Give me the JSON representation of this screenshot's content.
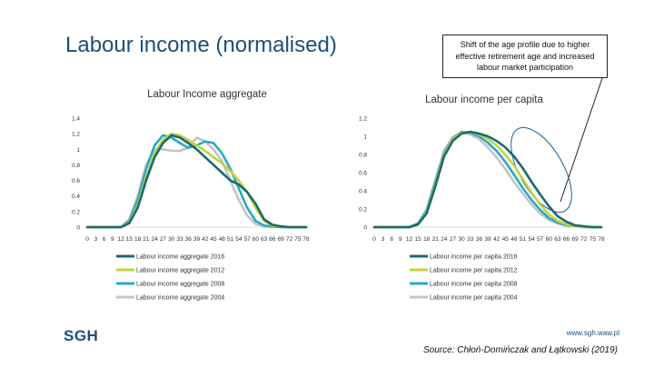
{
  "slide": {
    "title": "Labour income (normalised)",
    "callout": "Shift of the age profile due to higher effective retirement age and increased labour market participation",
    "logo": "SGH",
    "website": "www.sgh.waw.pl",
    "source": "Source: Chłoń-Domińczak and Łątkowski (2019)"
  },
  "colors": {
    "2016": "#1b6a6e",
    "2012": "#c3d33c",
    "2008": "#2aa9c4",
    "2004": "#c4c4c4"
  },
  "chart_data": [
    {
      "type": "line",
      "title": "Labour Income aggregate",
      "x_tick_labels": [
        "0",
        "3",
        "6",
        "9",
        "12",
        "15",
        "18",
        "21",
        "24",
        "27",
        "30",
        "33",
        "36",
        "39",
        "42",
        "45",
        "48",
        "51",
        "54",
        "57",
        "60",
        "63",
        "66",
        "69",
        "72",
        "75",
        "78"
      ],
      "y_tick_labels": [
        "0",
        "0.2",
        "0.4",
        "0.6",
        "0.8",
        "1",
        "1.2",
        "1.4"
      ],
      "ylim": [
        0,
        1.4
      ],
      "xlim": [
        0,
        78
      ],
      "grid": false,
      "legend_position": "bottom",
      "series": [
        {
          "name": "Labour income aggregate 2016",
          "color_key": "2016",
          "x": [
            0,
            12,
            15,
            18,
            21,
            24,
            27,
            30,
            33,
            36,
            39,
            42,
            45,
            48,
            51,
            54,
            57,
            60,
            63,
            66,
            69,
            72,
            78
          ],
          "y": [
            0,
            0,
            0.05,
            0.25,
            0.6,
            0.9,
            1.08,
            1.18,
            1.15,
            1.08,
            1.0,
            0.9,
            0.8,
            0.7,
            0.6,
            0.55,
            0.45,
            0.3,
            0.1,
            0.03,
            0.01,
            0,
            0
          ]
        },
        {
          "name": "Labour income aggregate 2012",
          "color_key": "2012",
          "x": [
            0,
            12,
            15,
            18,
            21,
            24,
            27,
            30,
            33,
            36,
            39,
            42,
            45,
            48,
            51,
            54,
            57,
            60,
            63,
            66,
            69,
            72,
            78
          ],
          "y": [
            0,
            0,
            0.06,
            0.28,
            0.65,
            0.95,
            1.12,
            1.2,
            1.18,
            1.12,
            1.05,
            0.98,
            0.9,
            0.82,
            0.72,
            0.6,
            0.45,
            0.25,
            0.08,
            0.02,
            0.01,
            0,
            0
          ]
        },
        {
          "name": "Labour income aggregate 2008",
          "color_key": "2008",
          "x": [
            0,
            12,
            15,
            18,
            21,
            24,
            27,
            30,
            33,
            36,
            39,
            42,
            45,
            48,
            51,
            54,
            57,
            60,
            63,
            66,
            69,
            72,
            78
          ],
          "y": [
            0,
            0,
            0.08,
            0.35,
            0.75,
            1.05,
            1.18,
            1.15,
            1.08,
            1.02,
            1.05,
            1.1,
            1.08,
            0.95,
            0.75,
            0.5,
            0.25,
            0.08,
            0.02,
            0.01,
            0,
            0,
            0
          ]
        },
        {
          "name": "Labour income aggregate 2004",
          "color_key": "2004",
          "x": [
            0,
            12,
            15,
            18,
            21,
            24,
            27,
            30,
            33,
            36,
            39,
            42,
            45,
            48,
            51,
            54,
            57,
            60,
            63,
            66,
            69,
            72,
            78
          ],
          "y": [
            0,
            0,
            0.1,
            0.4,
            0.8,
            1.0,
            1.0,
            0.98,
            0.98,
            1.02,
            1.15,
            1.1,
            1.0,
            0.85,
            0.6,
            0.35,
            0.15,
            0.04,
            0.01,
            0,
            0,
            0,
            0
          ]
        }
      ]
    },
    {
      "type": "line",
      "title": "Labour income per capita",
      "x_tick_labels": [
        "0",
        "3",
        "6",
        "9",
        "12",
        "15",
        "18",
        "21",
        "24",
        "27",
        "30",
        "33",
        "36",
        "39",
        "42",
        "45",
        "48",
        "51",
        "54",
        "57",
        "60",
        "63",
        "66",
        "69",
        "72",
        "75",
        "78"
      ],
      "y_tick_labels": [
        "0",
        "0.2",
        "0.4",
        "0.6",
        "0.8",
        "1",
        "1.2"
      ],
      "ylim": [
        0,
        1.2
      ],
      "xlim": [
        0,
        78
      ],
      "grid": false,
      "legend_position": "bottom",
      "series": [
        {
          "name": "Labour income per capita 2016",
          "color_key": "2016",
          "x": [
            0,
            12,
            15,
            18,
            21,
            24,
            27,
            30,
            33,
            36,
            39,
            42,
            45,
            48,
            51,
            54,
            57,
            60,
            63,
            66,
            69,
            72,
            75,
            78
          ],
          "y": [
            0,
            0,
            0.03,
            0.15,
            0.45,
            0.78,
            0.95,
            1.03,
            1.05,
            1.03,
            1.0,
            0.95,
            0.88,
            0.78,
            0.65,
            0.5,
            0.36,
            0.23,
            0.12,
            0.06,
            0.02,
            0.01,
            0,
            0
          ]
        },
        {
          "name": "Labour income per capita 2012",
          "color_key": "2012",
          "x": [
            0,
            12,
            15,
            18,
            21,
            24,
            27,
            30,
            33,
            36,
            39,
            42,
            45,
            48,
            51,
            54,
            57,
            60,
            63,
            66,
            69,
            72,
            75,
            78
          ],
          "y": [
            0,
            0,
            0.03,
            0.16,
            0.47,
            0.8,
            0.97,
            1.04,
            1.05,
            1.02,
            0.97,
            0.9,
            0.8,
            0.68,
            0.53,
            0.38,
            0.25,
            0.14,
            0.07,
            0.03,
            0.01,
            0,
            0,
            0
          ]
        },
        {
          "name": "Labour income per capita 2008",
          "color_key": "2008",
          "x": [
            0,
            12,
            15,
            18,
            21,
            24,
            27,
            30,
            33,
            36,
            39,
            42,
            45,
            48,
            51,
            54,
            57,
            60,
            63,
            66,
            69,
            72,
            75,
            78
          ],
          "y": [
            0,
            0,
            0.04,
            0.18,
            0.5,
            0.82,
            0.98,
            1.05,
            1.04,
            1.0,
            0.93,
            0.84,
            0.72,
            0.58,
            0.43,
            0.3,
            0.19,
            0.1,
            0.05,
            0.02,
            0.01,
            0,
            0,
            0
          ]
        },
        {
          "name": "Labour income per capita 2004",
          "color_key": "2004",
          "x": [
            0,
            12,
            15,
            18,
            21,
            24,
            27,
            30,
            33,
            36,
            39,
            42,
            45,
            48,
            51,
            54,
            57,
            60,
            63,
            66,
            69,
            72,
            75,
            78
          ],
          "y": [
            0,
            0,
            0.04,
            0.2,
            0.52,
            0.84,
            0.99,
            1.04,
            1.02,
            0.97,
            0.88,
            0.77,
            0.64,
            0.5,
            0.37,
            0.25,
            0.15,
            0.08,
            0.04,
            0.02,
            0.01,
            0,
            0,
            0
          ]
        }
      ]
    }
  ]
}
